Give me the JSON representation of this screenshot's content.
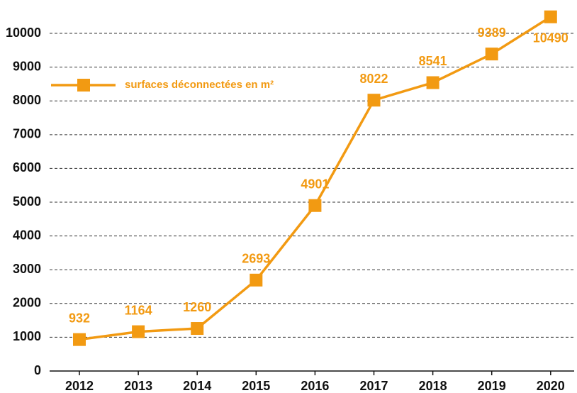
{
  "chart_data": {
    "type": "line",
    "categories": [
      "2012",
      "2013",
      "2014",
      "2015",
      "2016",
      "2017",
      "2018",
      "2019",
      "2020"
    ],
    "series": [
      {
        "name": "surfaces déconnectées en m²",
        "color": "#f29a12",
        "values": [
          932,
          1164,
          1260,
          2693,
          4901,
          8022,
          8541,
          9389,
          10490
        ]
      }
    ],
    "ylim": [
      0,
      10600
    ],
    "yticks": [
      0,
      1000,
      2000,
      3000,
      4000,
      5000,
      6000,
      7000,
      8000,
      9000,
      10000
    ],
    "grid": true,
    "legend": "top-left"
  }
}
